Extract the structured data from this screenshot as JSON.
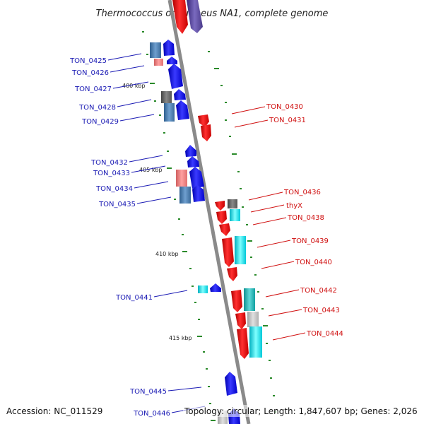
{
  "title": "Thermococcus onnurineus NA1, complete genome",
  "accession": "Accession: NC_011529",
  "topology": "Topology: circular; Length: 1,847,607 bp; Genes: 2,026",
  "scale": [
    {
      "kbp": 400,
      "label": "400 kbp"
    },
    {
      "kbp": 405,
      "label": "405 kbp"
    },
    {
      "kbp": 410,
      "label": "410 kbp"
    },
    {
      "kbp": 415,
      "label": "415 kbp"
    }
  ],
  "left_labels": [
    "TON_0425",
    "TON_0426",
    "TON_0427",
    "TON_0428",
    "TON_0429",
    "TON_0432",
    "TON_0433",
    "TON_0434",
    "TON_0435",
    "TON_0441",
    "TON_0445",
    "TON_0446"
  ],
  "right_labels": [
    "TON_0430",
    "TON_0431",
    "TON_0436",
    "thyX",
    "TON_0438",
    "TON_0439",
    "TON_0440",
    "TON_0442",
    "TON_0443",
    "TON_0444"
  ],
  "colors": {
    "forward_label": "#1a1ab4",
    "reverse_label": "#d01010",
    "backbone": "#888888",
    "forward_gene": "#1010e0",
    "reverse_gene": "#ee1010",
    "tick": "#2a8a2a"
  }
}
